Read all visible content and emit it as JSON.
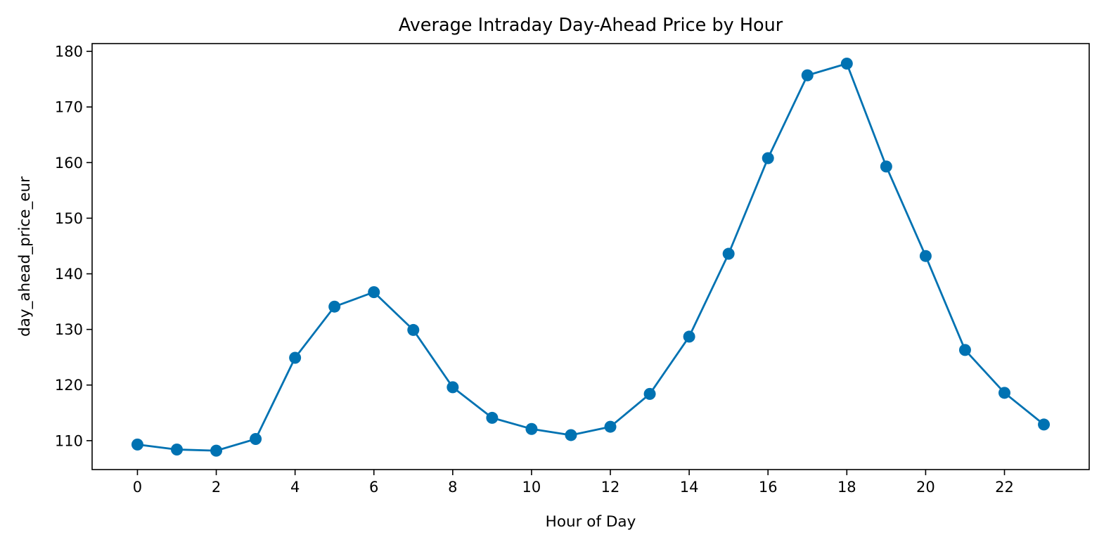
{
  "chart_data": {
    "type": "line",
    "title": "Average Intraday Day-Ahead Price by Hour",
    "xlabel": "Hour of Day",
    "ylabel": "day_ahead_price_eur",
    "xlim": [
      -1.15,
      24.15
    ],
    "ylim": [
      104.8,
      181.4
    ],
    "xticks": [
      0,
      2,
      4,
      6,
      8,
      10,
      12,
      14,
      16,
      18,
      20,
      22
    ],
    "yticks": [
      110,
      120,
      130,
      140,
      150,
      160,
      170,
      180
    ],
    "grid": false,
    "legend": null,
    "series": [
      {
        "color": "#0072B2",
        "marker": "circle",
        "x": [
          0,
          1,
          2,
          3,
          4,
          5,
          6,
          7,
          8,
          9,
          10,
          11,
          12,
          13,
          14,
          15,
          16,
          17,
          18,
          19,
          20,
          21,
          22,
          23
        ],
        "y": [
          109.3,
          108.4,
          108.2,
          110.3,
          124.9,
          134.1,
          136.7,
          129.9,
          119.6,
          114.1,
          112.1,
          111.0,
          112.5,
          118.4,
          128.7,
          143.6,
          160.8,
          175.7,
          177.8,
          159.3,
          143.2,
          126.3,
          118.6,
          112.9
        ]
      }
    ]
  }
}
